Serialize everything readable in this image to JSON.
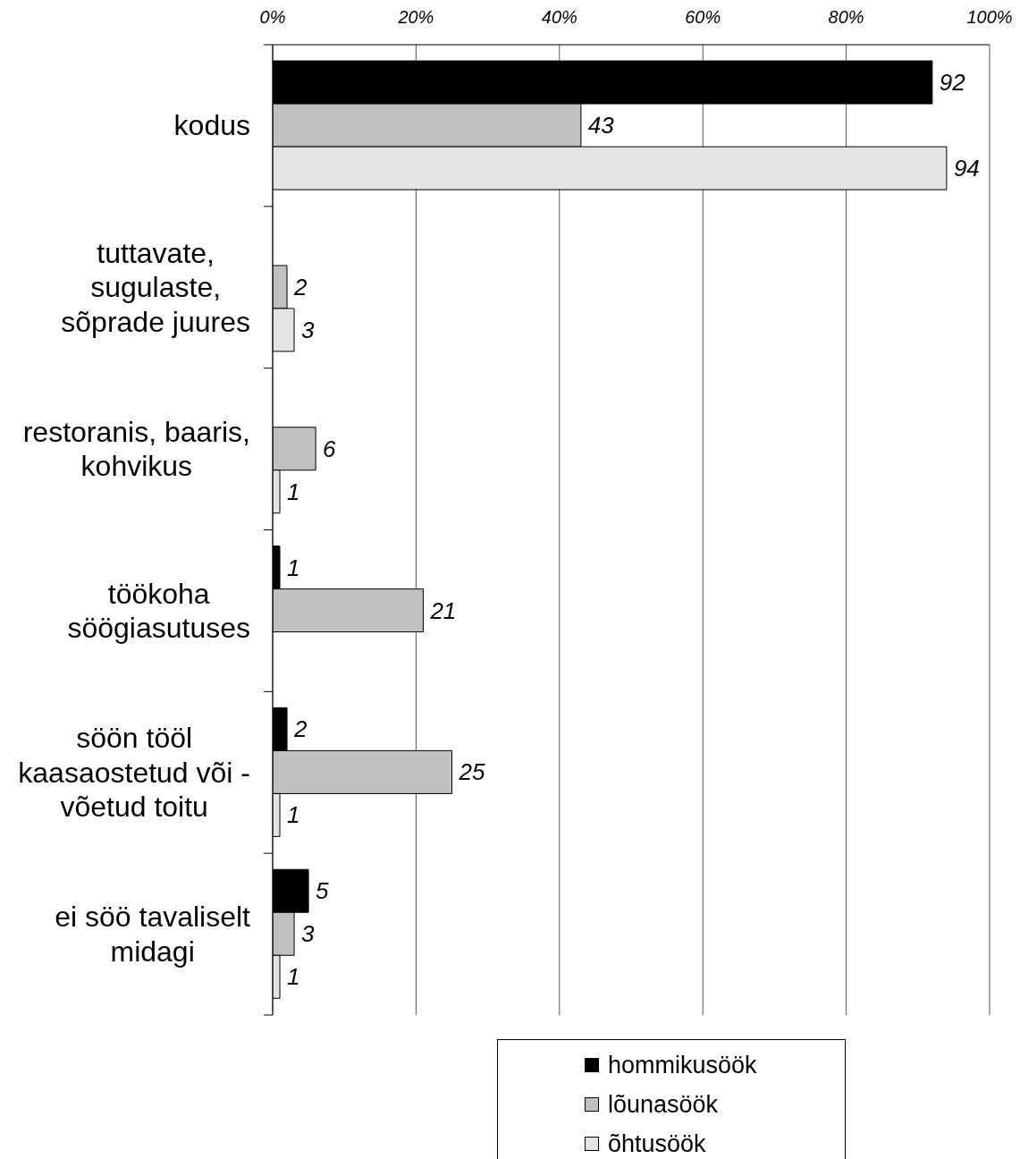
{
  "chart_data": {
    "type": "bar",
    "orientation": "horizontal",
    "categories": [
      "kodus",
      "tuttavate, sugulaste, sõprade juures",
      "restoranis, baaris, kohvikus",
      "töökoha söögiasutuses",
      "söön tööl kaasaostetud või -võetud toitu",
      "ei söö tavaliselt midagi"
    ],
    "series": [
      {
        "name": "hommikusöök",
        "color": "#000000",
        "values": [
          92,
          null,
          null,
          1,
          2,
          5
        ]
      },
      {
        "name": "lõunasöök",
        "color": "#c0c0c0",
        "values": [
          43,
          2,
          6,
          21,
          25,
          3
        ]
      },
      {
        "name": "õhtusöök",
        "color": "#e4e4e4",
        "values": [
          94,
          3,
          1,
          null,
          1,
          1
        ]
      }
    ],
    "xlim": [
      0,
      100
    ],
    "xticks": [
      {
        "value": 0,
        "label": "0%"
      },
      {
        "value": 20,
        "label": "20%"
      },
      {
        "value": 40,
        "label": "40%"
      },
      {
        "value": 60,
        "label": "60%"
      },
      {
        "value": 80,
        "label": "80%"
      },
      {
        "value": 100,
        "label": "100%"
      }
    ],
    "grid": "x",
    "legend": "bottom",
    "data_labels": true
  }
}
